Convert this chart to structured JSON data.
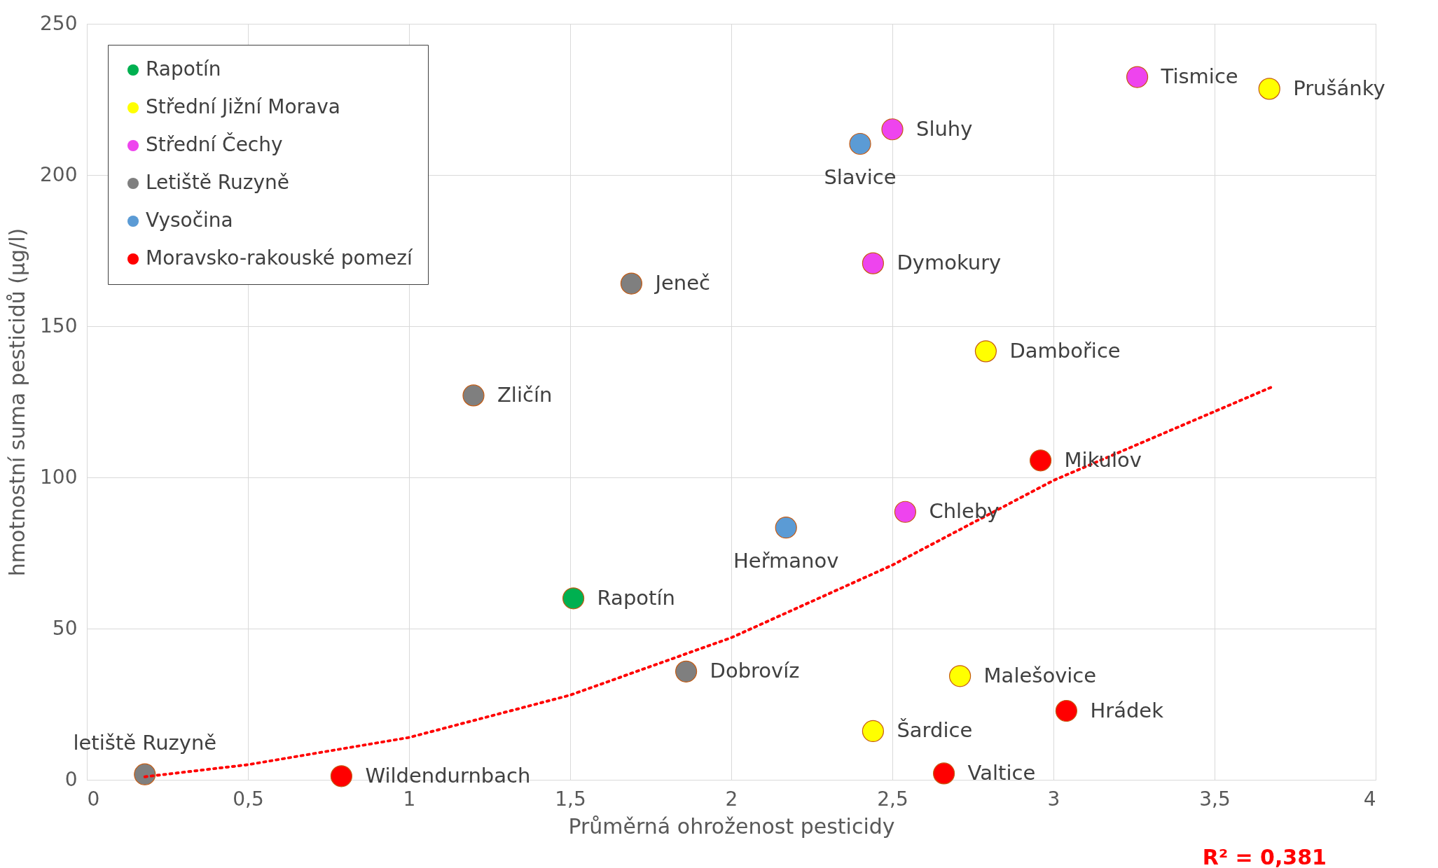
{
  "chart_data": {
    "type": "scatter",
    "xlabel": "Průměrná ohroženost pesticidy",
    "ylabel": "hmotnostní suma pesticidů (µg/l)",
    "xlim": [
      0,
      4
    ],
    "ylim": [
      0,
      250
    ],
    "xticks": [
      0,
      {
        "value": 0.5,
        "label": "0,5"
      },
      1,
      {
        "value": 1.5,
        "label": "1,5"
      },
      2,
      {
        "value": 2.5,
        "label": "2,5"
      },
      3,
      {
        "value": 3.5,
        "label": "3,5"
      },
      4
    ],
    "yticks": [
      0,
      50,
      100,
      150,
      200,
      250
    ],
    "grid": true,
    "legend": "top left",
    "marker": "circle",
    "series": [
      {
        "name": "Rapotín",
        "color": "#00b050",
        "x": [
          1.51
        ],
        "values": [
          60
        ]
      },
      {
        "name": "Střední Jižní Morava",
        "color": "#ffff00",
        "x": [
          3.67,
          2.79,
          2.71,
          2.44
        ],
        "values": [
          228.5,
          141.7,
          34.3,
          16.1
        ]
      },
      {
        "name": "Střední Čechy",
        "color": "#ee44ee",
        "x": [
          3.26,
          2.5,
          2.44,
          2.54
        ],
        "values": [
          232.4,
          215.1,
          170.8,
          88.6
        ]
      },
      {
        "name": "Letiště Ruzyně",
        "color": "#7f7f7f",
        "x": [
          1.69,
          1.2,
          1.86,
          0.18
        ],
        "values": [
          164.1,
          127.1,
          35.8,
          1.8
        ]
      },
      {
        "name": "Vysočina",
        "color": "#5b9bd5",
        "x": [
          2.4,
          2.17
        ],
        "values": [
          210.3,
          83.4
        ]
      },
      {
        "name": "Moravsko-rakouské pomezí",
        "color": "#ff0000",
        "x": [
          2.96,
          3.04,
          2.66,
          0.79
        ],
        "values": [
          105.6,
          22.8,
          2.1,
          1.2
        ]
      },
      {
        "type": "line",
        "color": "#ff0000",
        "line_style": "dotted",
        "marker": "none",
        "x": [
          0.18,
          0.5,
          1,
          1.5,
          2,
          2.5,
          3,
          3.68
        ],
        "values": [
          1,
          5,
          14,
          28,
          47,
          71,
          99,
          130
        ]
      }
    ],
    "annotations": [
      {
        "text": "Tismice",
        "x": 3.26,
        "y": 232.4
      },
      {
        "text": "Prušánky",
        "x": 3.67,
        "y": 228.5
      },
      {
        "text": "Sluhy",
        "x": 2.5,
        "y": 215.1
      },
      {
        "text": "Slavice",
        "x": 2.4,
        "y": 210.3
      },
      {
        "text": "Dymokury",
        "x": 2.44,
        "y": 170.8
      },
      {
        "text": "Jeneč",
        "x": 1.69,
        "y": 164.1
      },
      {
        "text": "Dambořice",
        "x": 2.79,
        "y": 141.7
      },
      {
        "text": "Zličín",
        "x": 1.2,
        "y": 127.1
      },
      {
        "text": "Mikulov",
        "x": 2.96,
        "y": 105.6
      },
      {
        "text": "Chleby",
        "x": 2.54,
        "y": 88.6
      },
      {
        "text": "Heřmanov",
        "x": 2.17,
        "y": 83.4
      },
      {
        "text": "Rapotín",
        "x": 1.51,
        "y": 60
      },
      {
        "text": "Dobrovíz",
        "x": 1.86,
        "y": 35.8
      },
      {
        "text": "Malešovice",
        "x": 2.71,
        "y": 34.3
      },
      {
        "text": "Hrádek",
        "x": 3.04,
        "y": 22.8
      },
      {
        "text": "Šardice",
        "x": 2.44,
        "y": 16.1
      },
      {
        "text": "letiště Ruzyně",
        "x": 0.18,
        "y": 1.8
      },
      {
        "text": "Wildendurnbach",
        "x": 0.79,
        "y": 1.2
      },
      {
        "text": "Valtice",
        "x": 2.66,
        "y": 2.1
      },
      "R² = 0,381"
    ]
  }
}
